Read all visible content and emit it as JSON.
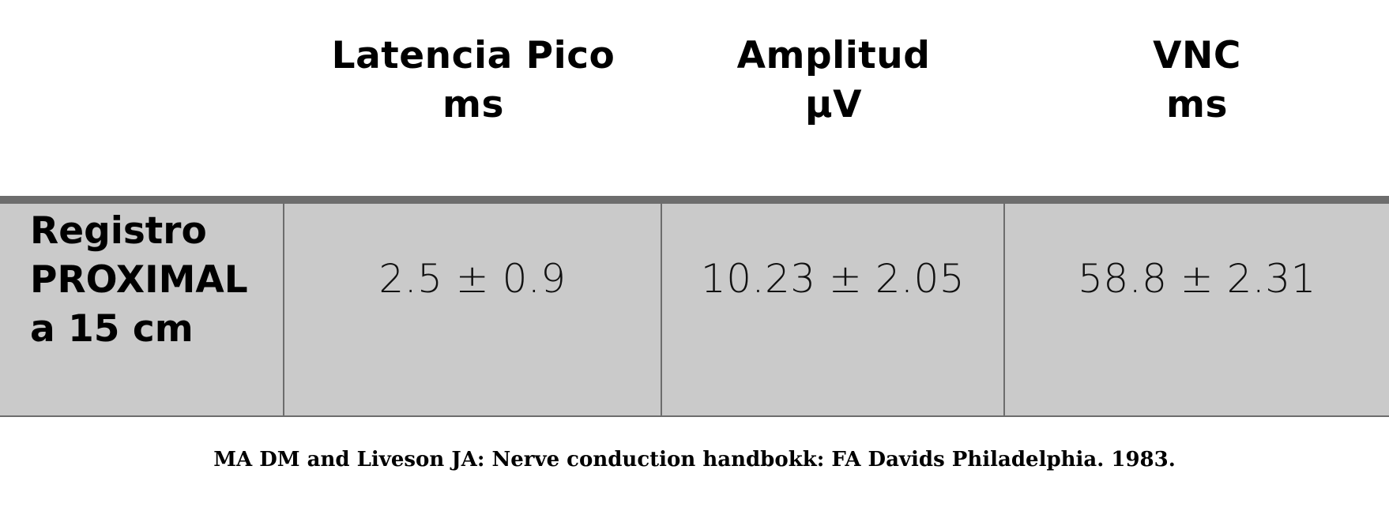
{
  "table": {
    "columns": [
      {
        "name_line1": "Latencia Pico",
        "name_line2": "ms"
      },
      {
        "name_line1": "Amplitud",
        "name_line2": "µV"
      },
      {
        "name_line1": "VNC",
        "name_line2": "ms"
      }
    ],
    "rows": [
      {
        "label_lines": [
          "Registro",
          "PROXIMAL",
          "a 15 cm"
        ],
        "values": [
          "2.5 ± 0.9",
          "10.23 ± 2.05",
          "58.8 ± 2.31"
        ]
      }
    ]
  },
  "colors": {
    "row_background": "#cacaca",
    "rule": "#6d6d6d",
    "text": "#000000"
  },
  "citation": "MA DM and Liveson JA: Nerve conduction handbokk: FA Davids Philadelphia. 1983."
}
